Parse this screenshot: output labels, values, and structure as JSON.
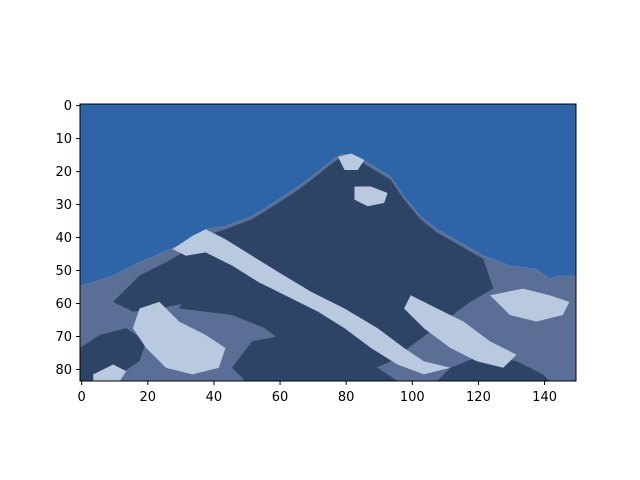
{
  "chart_data": {
    "type": "heatmap",
    "description_kind": "image",
    "title": "",
    "xlabel": "",
    "ylabel": "",
    "image_size": {
      "cols": 150,
      "rows": 84
    },
    "xlim": [
      -0.5,
      149.5
    ],
    "ylim": [
      83.5,
      -0.5
    ],
    "y_inverted": true,
    "x_ticks": [
      0,
      20,
      40,
      60,
      80,
      100,
      120,
      140
    ],
    "x_tick_labels": [
      "0",
      "20",
      "40",
      "60",
      "80",
      "100",
      "120",
      "140"
    ],
    "y_ticks": [
      0,
      10,
      20,
      30,
      40,
      50,
      60,
      70,
      80
    ],
    "y_tick_labels": [
      "0",
      "10",
      "20",
      "30",
      "40",
      "50",
      "60",
      "70",
      "80"
    ],
    "grid": false,
    "legend": "none",
    "palette": {
      "sky": "#2e65a8",
      "rock_dark": "#2e4466",
      "rock_mid": "#5b6f96",
      "snow": "#b9c9df"
    },
    "regions": [
      {
        "name": "sky",
        "color": "sky",
        "polygon": [
          [
            0,
            0
          ],
          [
            150,
            0
          ],
          [
            150,
            52
          ],
          [
            145,
            52
          ],
          [
            142,
            53
          ],
          [
            138,
            50
          ],
          [
            130,
            49
          ],
          [
            122,
            46
          ],
          [
            115,
            42
          ],
          [
            108,
            38
          ],
          [
            103,
            34
          ],
          [
            98,
            28
          ],
          [
            94,
            22
          ],
          [
            89,
            19
          ],
          [
            84,
            16
          ],
          [
            79,
            15
          ],
          [
            75,
            18
          ],
          [
            70,
            22
          ],
          [
            66,
            25
          ],
          [
            60,
            29
          ],
          [
            52,
            34
          ],
          [
            44,
            37
          ],
          [
            38,
            38
          ],
          [
            32,
            42
          ],
          [
            25,
            45
          ],
          [
            18,
            48
          ],
          [
            10,
            52
          ],
          [
            4,
            54
          ],
          [
            0,
            55
          ]
        ]
      },
      {
        "name": "mountain-mid-base",
        "color": "rock_mid",
        "polygon": [
          [
            0,
            55
          ],
          [
            4,
            54
          ],
          [
            10,
            52
          ],
          [
            18,
            48
          ],
          [
            25,
            45
          ],
          [
            32,
            42
          ],
          [
            38,
            38
          ],
          [
            44,
            37
          ],
          [
            52,
            34
          ],
          [
            60,
            29
          ],
          [
            66,
            25
          ],
          [
            70,
            22
          ],
          [
            75,
            18
          ],
          [
            79,
            15
          ],
          [
            84,
            16
          ],
          [
            89,
            19
          ],
          [
            94,
            22
          ],
          [
            98,
            28
          ],
          [
            103,
            34
          ],
          [
            108,
            38
          ],
          [
            115,
            42
          ],
          [
            122,
            46
          ],
          [
            130,
            49
          ],
          [
            138,
            50
          ],
          [
            142,
            53
          ],
          [
            145,
            52
          ],
          [
            150,
            52
          ],
          [
            150,
            84
          ],
          [
            0,
            84
          ]
        ]
      },
      {
        "name": "main-peak-dark",
        "color": "rock_dark",
        "polygon": [
          [
            30,
            62
          ],
          [
            36,
            50
          ],
          [
            38,
            40
          ],
          [
            44,
            38
          ],
          [
            52,
            35
          ],
          [
            60,
            30
          ],
          [
            66,
            26
          ],
          [
            70,
            23
          ],
          [
            75,
            19
          ],
          [
            79,
            16
          ],
          [
            84,
            17
          ],
          [
            89,
            20
          ],
          [
            94,
            23
          ],
          [
            98,
            29
          ],
          [
            103,
            35
          ],
          [
            108,
            39
          ],
          [
            115,
            43
          ],
          [
            122,
            47
          ],
          [
            125,
            56
          ],
          [
            118,
            60
          ],
          [
            110,
            66
          ],
          [
            102,
            72
          ],
          [
            94,
            78
          ],
          [
            85,
            82
          ],
          [
            75,
            82
          ],
          [
            66,
            76
          ],
          [
            56,
            68
          ],
          [
            46,
            64
          ]
        ]
      },
      {
        "name": "left-shoulder-dark",
        "color": "rock_dark",
        "polygon": [
          [
            10,
            60
          ],
          [
            18,
            52
          ],
          [
            26,
            48
          ],
          [
            33,
            44
          ],
          [
            38,
            42
          ],
          [
            40,
            52
          ],
          [
            34,
            60
          ],
          [
            24,
            62
          ],
          [
            16,
            63
          ]
        ]
      },
      {
        "name": "lower-left-dark",
        "color": "rock_dark",
        "polygon": [
          [
            0,
            74
          ],
          [
            6,
            70
          ],
          [
            14,
            68
          ],
          [
            20,
            72
          ],
          [
            18,
            78
          ],
          [
            12,
            82
          ],
          [
            4,
            84
          ],
          [
            0,
            84
          ]
        ]
      },
      {
        "name": "lower-middle-dark",
        "color": "rock_dark",
        "polygon": [
          [
            52,
            72
          ],
          [
            62,
            70
          ],
          [
            72,
            76
          ],
          [
            82,
            78
          ],
          [
            90,
            80
          ],
          [
            96,
            84
          ],
          [
            50,
            84
          ],
          [
            46,
            80
          ]
        ]
      },
      {
        "name": "lower-right-dark",
        "color": "rock_dark",
        "polygon": [
          [
            112,
            80
          ],
          [
            122,
            76
          ],
          [
            132,
            78
          ],
          [
            140,
            82
          ],
          [
            142,
            84
          ],
          [
            108,
            84
          ]
        ]
      },
      {
        "name": "summit-snow-cap",
        "color": "snow",
        "polygon": [
          [
            78,
            16
          ],
          [
            82,
            15
          ],
          [
            86,
            17
          ],
          [
            84,
            20
          ],
          [
            80,
            20
          ]
        ]
      },
      {
        "name": "summit-snow-patch",
        "color": "snow",
        "polygon": [
          [
            83,
            25
          ],
          [
            88,
            25
          ],
          [
            93,
            27
          ],
          [
            92,
            30
          ],
          [
            87,
            31
          ],
          [
            83,
            29
          ]
        ]
      },
      {
        "name": "main-snow-ridge",
        "color": "snow",
        "polygon": [
          [
            28,
            44
          ],
          [
            34,
            40
          ],
          [
            38,
            38
          ],
          [
            44,
            41
          ],
          [
            52,
            46
          ],
          [
            60,
            51
          ],
          [
            70,
            57
          ],
          [
            80,
            62
          ],
          [
            90,
            68
          ],
          [
            98,
            74
          ],
          [
            104,
            78
          ],
          [
            112,
            80
          ],
          [
            104,
            82
          ],
          [
            96,
            79
          ],
          [
            88,
            74
          ],
          [
            80,
            68
          ],
          [
            72,
            63
          ],
          [
            62,
            58
          ],
          [
            54,
            54
          ],
          [
            46,
            49
          ],
          [
            38,
            45
          ],
          [
            32,
            46
          ]
        ]
      },
      {
        "name": "right-snow-ridge",
        "color": "snow",
        "polygon": [
          [
            100,
            58
          ],
          [
            108,
            62
          ],
          [
            116,
            66
          ],
          [
            124,
            72
          ],
          [
            132,
            76
          ],
          [
            128,
            80
          ],
          [
            120,
            78
          ],
          [
            112,
            74
          ],
          [
            104,
            68
          ],
          [
            98,
            62
          ]
        ]
      },
      {
        "name": "right-snow-field",
        "color": "snow",
        "polygon": [
          [
            124,
            58
          ],
          [
            134,
            56
          ],
          [
            142,
            58
          ],
          [
            148,
            60
          ],
          [
            146,
            64
          ],
          [
            138,
            66
          ],
          [
            130,
            64
          ]
        ]
      },
      {
        "name": "left-snow-field",
        "color": "snow",
        "polygon": [
          [
            18,
            62
          ],
          [
            24,
            60
          ],
          [
            30,
            66
          ],
          [
            38,
            70
          ],
          [
            44,
            74
          ],
          [
            42,
            80
          ],
          [
            34,
            82
          ],
          [
            26,
            80
          ],
          [
            20,
            74
          ],
          [
            16,
            68
          ]
        ]
      },
      {
        "name": "left-snow-patch",
        "color": "snow",
        "polygon": [
          [
            4,
            82
          ],
          [
            10,
            79
          ],
          [
            14,
            81
          ],
          [
            12,
            84
          ],
          [
            4,
            84
          ]
        ]
      }
    ]
  }
}
